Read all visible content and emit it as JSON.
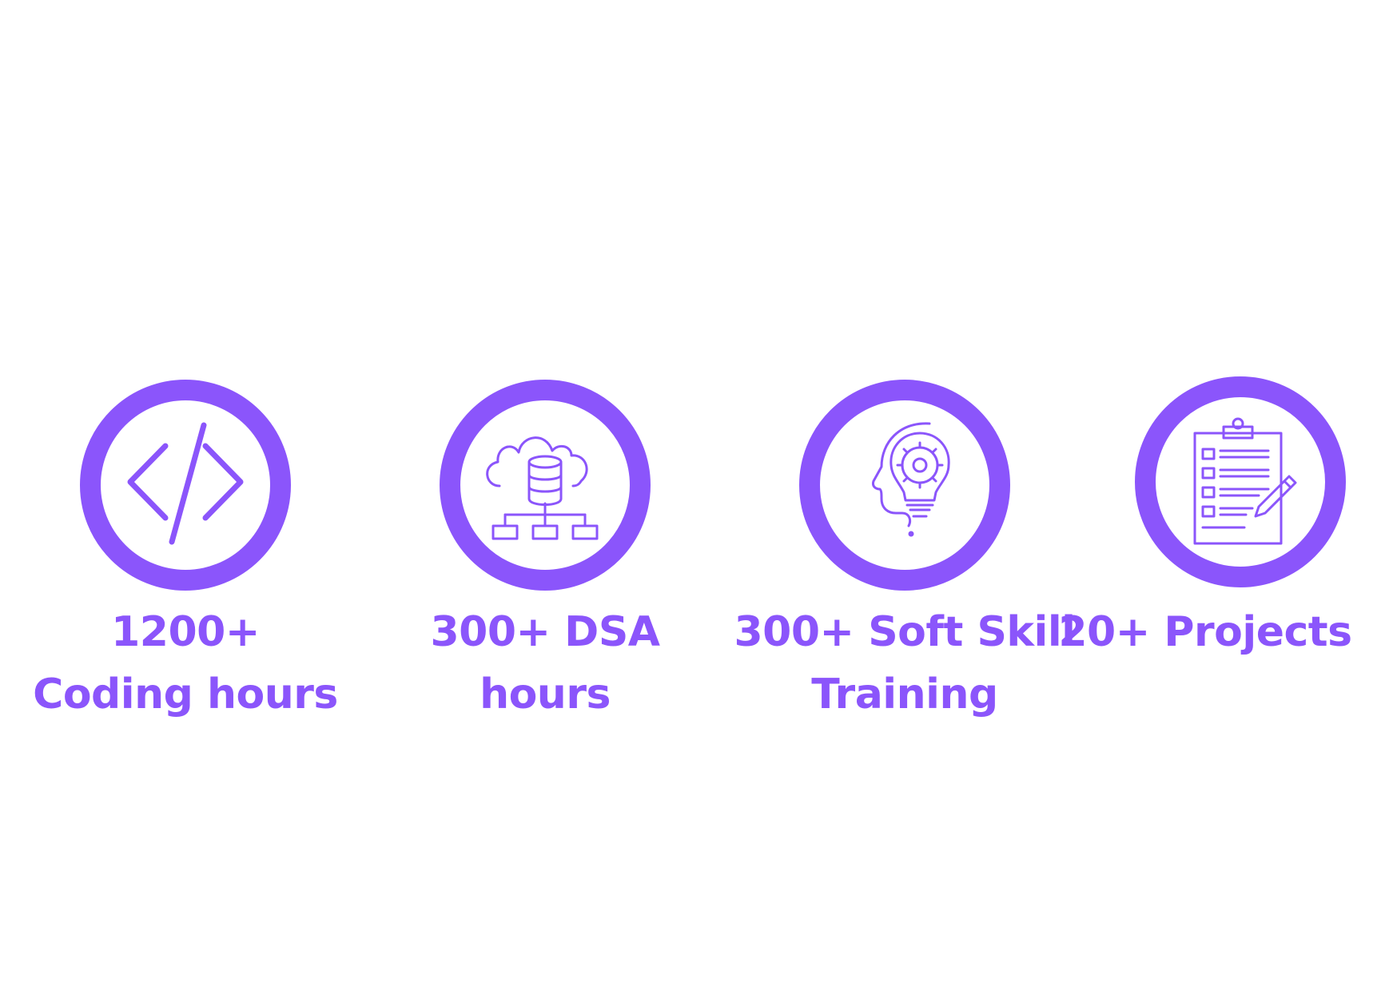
{
  "accent_color": "#8b55fb",
  "features": [
    {
      "icon": "code-icon",
      "caption": "1200+\nCoding hours"
    },
    {
      "icon": "cloud-database-icon",
      "caption": "300+ DSA\nhours"
    },
    {
      "icon": "head-lightbulb-gear-icon",
      "caption": "300+ Soft Skill\nTraining"
    },
    {
      "icon": "clipboard-checklist-icon",
      "caption": "20+ Projects"
    }
  ]
}
